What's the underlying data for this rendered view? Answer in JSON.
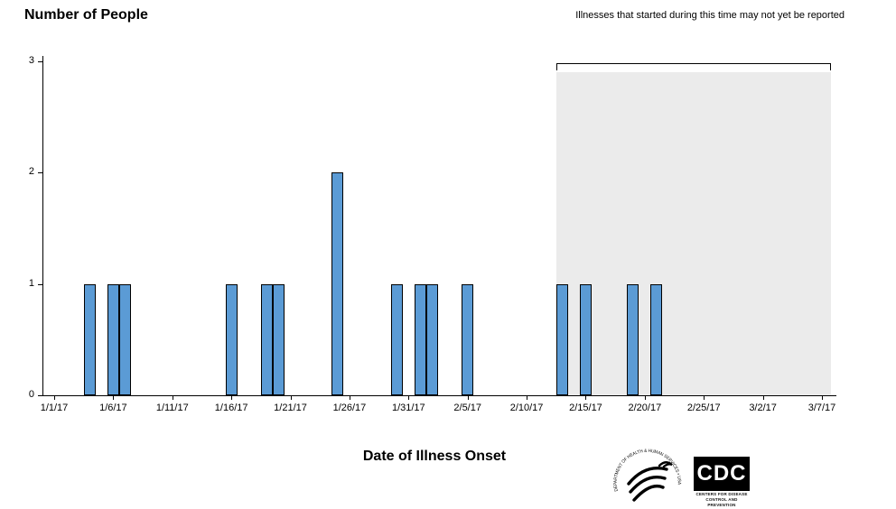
{
  "title": "Number of People",
  "note": "Illnesses that started during this time may not yet be reported",
  "xlabel": "Date of Illness Onset",
  "chart_data": {
    "type": "bar",
    "title": "Number of People",
    "xlabel": "Date of Illness Onset",
    "ylabel": "Number of People",
    "ylim": [
      0,
      3
    ],
    "yticks": [
      0,
      1,
      2,
      3
    ],
    "xticks": [
      "1/1/17",
      "1/6/17",
      "1/11/17",
      "1/16/17",
      "1/21/17",
      "1/26/17",
      "1/31/17",
      "2/5/17",
      "2/10/17",
      "2/15/17",
      "2/20/17",
      "2/25/17",
      "3/2/17",
      "3/7/17"
    ],
    "x_range": [
      "1/1/17",
      "3/7/17"
    ],
    "bar_unit": "day",
    "bar_fill": "#5b9bd5",
    "bar_border": "#000000",
    "grid": false,
    "cases": [
      {
        "date": "1/4/17",
        "count": 1
      },
      {
        "date": "1/6/17",
        "count": 1
      },
      {
        "date": "1/7/17",
        "count": 1
      },
      {
        "date": "1/16/17",
        "count": 1
      },
      {
        "date": "1/19/17",
        "count": 1
      },
      {
        "date": "1/20/17",
        "count": 1
      },
      {
        "date": "1/25/17",
        "count": 2
      },
      {
        "date": "1/30/17",
        "count": 1
      },
      {
        "date": "2/1/17",
        "count": 1
      },
      {
        "date": "2/2/17",
        "count": 1
      },
      {
        "date": "2/5/17",
        "count": 1
      },
      {
        "date": "2/13/17",
        "count": 1
      },
      {
        "date": "2/15/17",
        "count": 1
      },
      {
        "date": "2/19/17",
        "count": 1
      },
      {
        "date": "2/21/17",
        "count": 1
      }
    ],
    "unreported_region": {
      "start": "2/12/17",
      "end": "3/7/17",
      "fill": "#ebebeb",
      "label": "Illnesses that started during this time may not yet be reported"
    }
  },
  "footer": {
    "hhs_text": "DEPARTMENT OF HEALTH & HUMAN SERVICES • USA",
    "cdc_letters": "CDC",
    "cdc_subtext": "CENTERS FOR DISEASE CONTROL AND PREVENTION"
  }
}
